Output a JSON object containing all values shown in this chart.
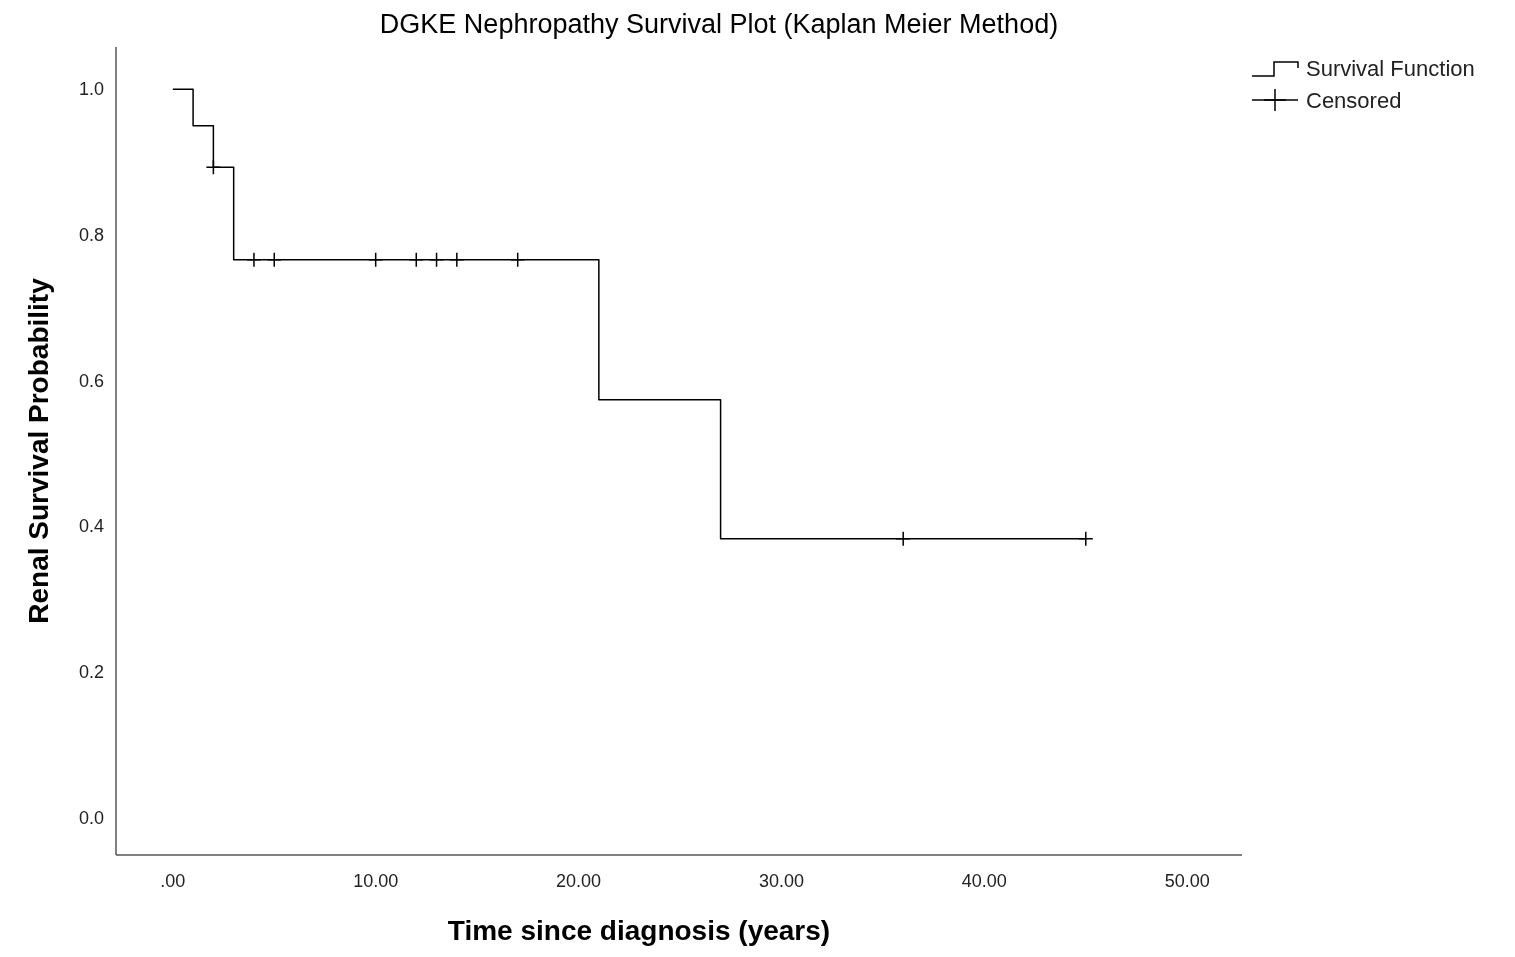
{
  "chart_data": {
    "type": "step",
    "title": "DGKE Nephropathy Survival Plot (Kaplan Meier Method)",
    "xlabel": "Time since diagnosis (years)",
    "ylabel": "Renal Survival Probability",
    "series": [
      {
        "name": "Survival Function",
        "color": "#000000",
        "x": [
          0,
          1,
          2,
          3,
          21,
          27,
          45
        ],
        "values": [
          1,
          0.95,
          0.893,
          0.766,
          0.574,
          0.383,
          0.383
        ]
      },
      {
        "name": "Censored",
        "type": "scatter",
        "color": "#000000",
        "x": [
          2,
          4,
          5,
          10,
          12,
          13,
          14,
          17,
          36,
          45
        ],
        "values": [
          0.893,
          0.766,
          0.766,
          0.766,
          0.766,
          0.766,
          0.766,
          0.766,
          0.383,
          0.383
        ],
        "marker": "cross"
      }
    ],
    "xlim": [
      -2.8,
      52.7
    ],
    "ylim": [
      -0.051,
      1.058
    ],
    "xticks": [
      {
        "value": 0,
        "label": ".00"
      },
      {
        "value": 10,
        "label": "10.00"
      },
      {
        "value": 20,
        "label": "20.00"
      },
      {
        "value": 30,
        "label": "30.00"
      },
      {
        "value": 40,
        "label": "40.00"
      },
      {
        "value": 50,
        "label": "50.00"
      }
    ],
    "yticks": [
      {
        "value": 0,
        "label": "0.0"
      },
      0.2,
      0.4,
      0.6,
      0.8,
      {
        "value": 1,
        "label": "1.0"
      }
    ],
    "grid": false,
    "legend": "top right"
  }
}
